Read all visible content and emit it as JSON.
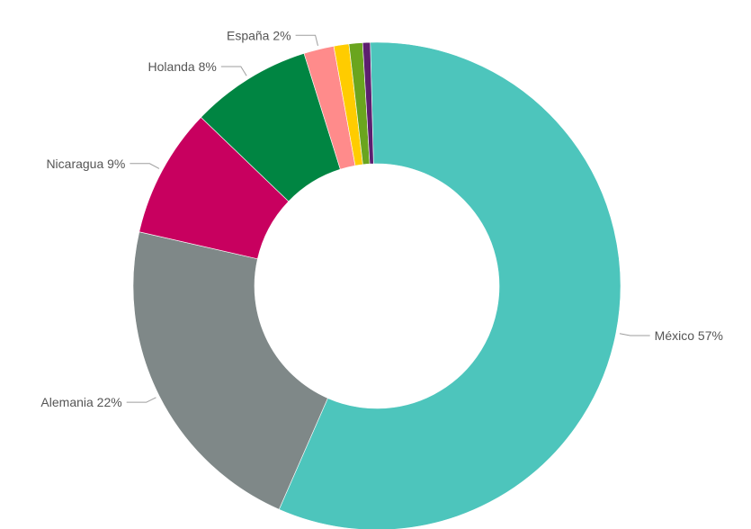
{
  "chart_data": {
    "type": "pie",
    "donut": true,
    "title": "",
    "legend": "none",
    "slices": [
      {
        "label": "México 57%",
        "name": "México",
        "value": 57.0,
        "color": "#4dc5bc",
        "labeled": true
      },
      {
        "label": "Alemania 22%",
        "name": "Alemania",
        "value": 22.0,
        "color": "#7f8888",
        "labeled": true
      },
      {
        "label": "Nicaragua 9%",
        "name": "Nicaragua",
        "value": 8.6,
        "color": "#c8005f",
        "labeled": true
      },
      {
        "label": "Holanda 8%",
        "name": "Holanda",
        "value": 8.0,
        "color": "#008542",
        "labeled": true
      },
      {
        "label": "España 2%",
        "name": "España",
        "value": 2.0,
        "color": "#ff8b8b",
        "labeled": true
      },
      {
        "label": "",
        "name": "",
        "value": 1.0,
        "color": "#ffcc00",
        "labeled": false
      },
      {
        "label": "",
        "name": "",
        "value": 0.9,
        "color": "#6aa51e",
        "labeled": false
      },
      {
        "label": "",
        "name": "",
        "value": 0.5,
        "color": "#5c1f6f",
        "labeled": false
      }
    ]
  }
}
